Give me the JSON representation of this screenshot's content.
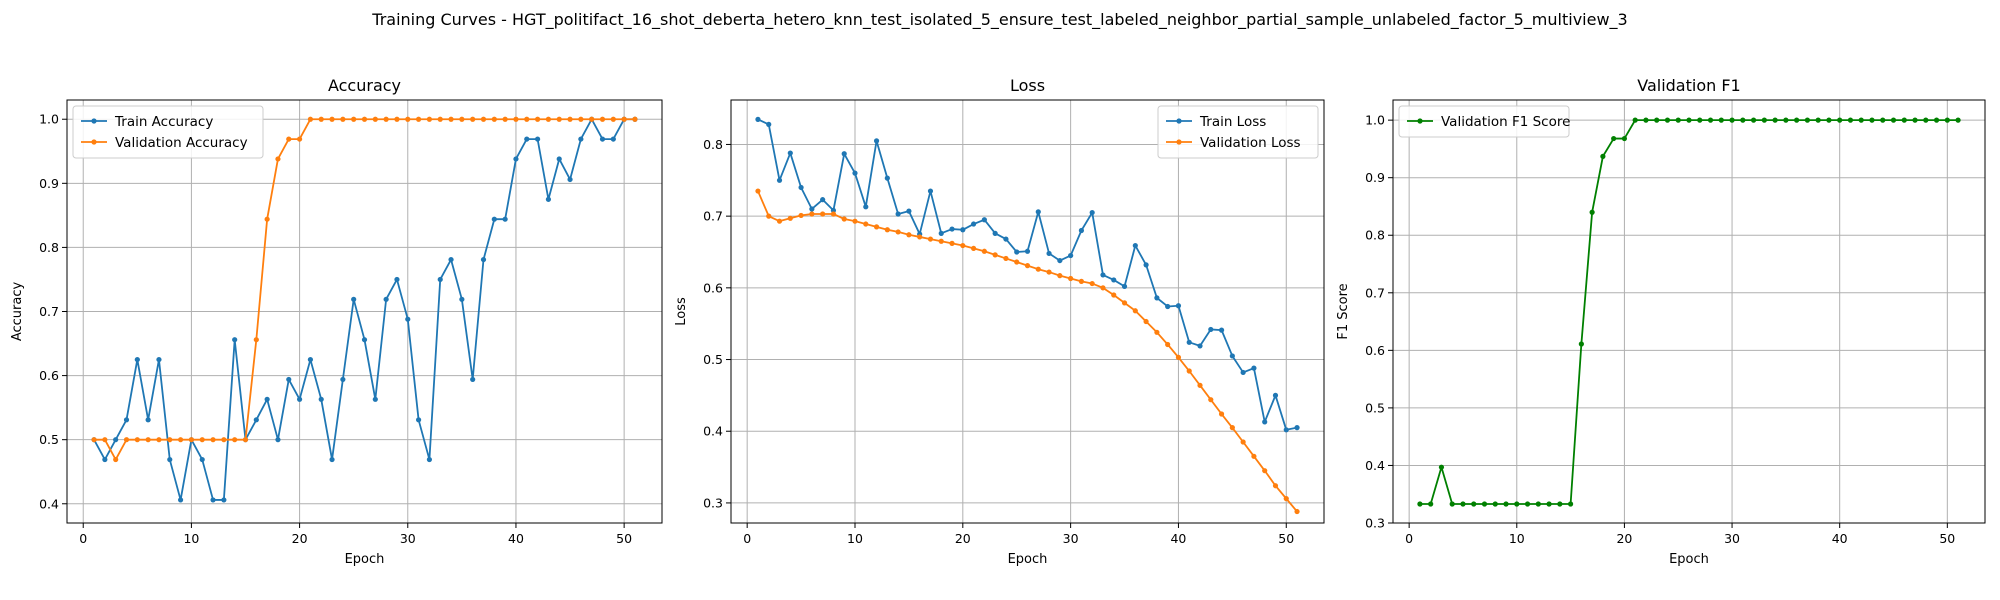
{
  "figure": {
    "suptitle": "Training Curves - HGT_politifact_16_shot_deberta_hetero_knn_test_isolated_5_ensure_test_labeled_neighbor_partial_sample_unlabeled_factor_5_multiview_3"
  },
  "colors": {
    "blue": "#1f77b4",
    "orange": "#ff7f0e",
    "green": "#008000",
    "grid": "#b0b0b0"
  },
  "chart_data": [
    {
      "type": "line",
      "title": "Accuracy",
      "xlabel": "Epoch",
      "ylabel": "Accuracy",
      "xlim": [
        -1.5,
        53.5
      ],
      "ylim": [
        0.37,
        1.03
      ],
      "xticks": [
        0,
        10,
        20,
        30,
        40,
        50
      ],
      "yticks": [
        0.4,
        0.5,
        0.6,
        0.7,
        0.8,
        0.9,
        1.0
      ],
      "ytick_labels": [
        "0.4",
        "0.5",
        "0.6",
        "0.7",
        "0.8",
        "0.9",
        "1.0"
      ],
      "grid": true,
      "legend": "upper-left",
      "x": [
        1,
        2,
        3,
        4,
        5,
        6,
        7,
        8,
        9,
        10,
        11,
        12,
        13,
        14,
        15,
        16,
        17,
        18,
        19,
        20,
        21,
        22,
        23,
        24,
        25,
        26,
        27,
        28,
        29,
        30,
        31,
        32,
        33,
        34,
        35,
        36,
        37,
        38,
        39,
        40,
        41,
        42,
        43,
        44,
        45,
        46,
        47,
        48,
        49,
        50,
        51
      ],
      "series": [
        {
          "name": "Train Accuracy",
          "color": "#1f77b4",
          "values": [
            0.5,
            0.469,
            0.5,
            0.531,
            0.625,
            0.531,
            0.625,
            0.469,
            0.406,
            0.5,
            0.469,
            0.406,
            0.406,
            0.656,
            0.5,
            0.531,
            0.563,
            0.5,
            0.594,
            0.563,
            0.625,
            0.563,
            0.469,
            0.594,
            0.719,
            0.656,
            0.563,
            0.719,
            0.75,
            0.688,
            0.531,
            0.469,
            0.75,
            0.781,
            0.719,
            0.594,
            0.781,
            0.844,
            0.844,
            0.938,
            0.969,
            0.969,
            0.875,
            0.938,
            0.906,
            0.969,
            1.0,
            0.969,
            0.969,
            1.0,
            1.0
          ]
        },
        {
          "name": "Validation Accuracy",
          "color": "#ff7f0e",
          "values": [
            0.5,
            0.5,
            0.469,
            0.5,
            0.5,
            0.5,
            0.5,
            0.5,
            0.5,
            0.5,
            0.5,
            0.5,
            0.5,
            0.5,
            0.5,
            0.656,
            0.844,
            0.938,
            0.969,
            0.969,
            1.0,
            1.0,
            1.0,
            1.0,
            1.0,
            1.0,
            1.0,
            1.0,
            1.0,
            1.0,
            1.0,
            1.0,
            1.0,
            1.0,
            1.0,
            1.0,
            1.0,
            1.0,
            1.0,
            1.0,
            1.0,
            1.0,
            1.0,
            1.0,
            1.0,
            1.0,
            1.0,
            1.0,
            1.0,
            1.0,
            1.0
          ]
        }
      ]
    },
    {
      "type": "line",
      "title": "Loss",
      "xlabel": "Epoch",
      "ylabel": "Loss",
      "xlim": [
        -1.5,
        53.5
      ],
      "ylim": [
        0.272,
        0.862
      ],
      "xticks": [
        0,
        10,
        20,
        30,
        40,
        50
      ],
      "yticks": [
        0.3,
        0.4,
        0.5,
        0.6,
        0.7,
        0.8
      ],
      "ytick_labels": [
        "0.3",
        "0.4",
        "0.5",
        "0.6",
        "0.7",
        "0.8"
      ],
      "grid": true,
      "legend": "upper-right",
      "x": [
        1,
        2,
        3,
        4,
        5,
        6,
        7,
        8,
        9,
        10,
        11,
        12,
        13,
        14,
        15,
        16,
        17,
        18,
        19,
        20,
        21,
        22,
        23,
        24,
        25,
        26,
        27,
        28,
        29,
        30,
        31,
        32,
        33,
        34,
        35,
        36,
        37,
        38,
        39,
        40,
        41,
        42,
        43,
        44,
        45,
        46,
        47,
        48,
        49,
        50,
        51
      ],
      "series": [
        {
          "name": "Train Loss",
          "color": "#1f77b4",
          "values": [
            0.835,
            0.828,
            0.75,
            0.788,
            0.74,
            0.71,
            0.723,
            0.708,
            0.787,
            0.76,
            0.713,
            0.805,
            0.753,
            0.703,
            0.707,
            0.675,
            0.735,
            0.676,
            0.682,
            0.681,
            0.689,
            0.695,
            0.676,
            0.668,
            0.65,
            0.651,
            0.706,
            0.648,
            0.638,
            0.645,
            0.68,
            0.705,
            0.618,
            0.611,
            0.602,
            0.659,
            0.632,
            0.586,
            0.574,
            0.575,
            0.524,
            0.519,
            0.542,
            0.541,
            0.505,
            0.482,
            0.488,
            0.413,
            0.45,
            0.402,
            0.405
          ]
        },
        {
          "name": "Validation Loss",
          "color": "#ff7f0e",
          "values": [
            0.735,
            0.7,
            0.693,
            0.697,
            0.701,
            0.703,
            0.703,
            0.703,
            0.696,
            0.693,
            0.689,
            0.685,
            0.681,
            0.678,
            0.674,
            0.671,
            0.668,
            0.665,
            0.662,
            0.659,
            0.655,
            0.651,
            0.646,
            0.641,
            0.636,
            0.631,
            0.626,
            0.622,
            0.617,
            0.613,
            0.609,
            0.606,
            0.6,
            0.59,
            0.579,
            0.568,
            0.553,
            0.538,
            0.521,
            0.503,
            0.484,
            0.464,
            0.444,
            0.424,
            0.405,
            0.385,
            0.365,
            0.345,
            0.324,
            0.306,
            0.288
          ]
        }
      ]
    },
    {
      "type": "line",
      "title": "Validation F1",
      "xlabel": "Epoch",
      "ylabel": "F1 Score",
      "xlim": [
        -1.5,
        53.5
      ],
      "ylim": [
        0.3,
        1.035
      ],
      "xticks": [
        0,
        10,
        20,
        30,
        40,
        50
      ],
      "yticks": [
        0.3,
        0.4,
        0.5,
        0.6,
        0.7,
        0.8,
        0.9,
        1.0
      ],
      "ytick_labels": [
        "0.3",
        "0.4",
        "0.5",
        "0.6",
        "0.7",
        "0.8",
        "0.9",
        "1.0"
      ],
      "grid": true,
      "legend": "upper-left",
      "x": [
        1,
        2,
        3,
        4,
        5,
        6,
        7,
        8,
        9,
        10,
        11,
        12,
        13,
        14,
        15,
        16,
        17,
        18,
        19,
        20,
        21,
        22,
        23,
        24,
        25,
        26,
        27,
        28,
        29,
        30,
        31,
        32,
        33,
        34,
        35,
        36,
        37,
        38,
        39,
        40,
        41,
        42,
        43,
        44,
        45,
        46,
        47,
        48,
        49,
        50,
        51
      ],
      "series": [
        {
          "name": "Validation F1 Score",
          "color": "#008000",
          "values": [
            0.333,
            0.333,
            0.397,
            0.333,
            0.333,
            0.333,
            0.333,
            0.333,
            0.333,
            0.333,
            0.333,
            0.333,
            0.333,
            0.333,
            0.333,
            0.611,
            0.84,
            0.937,
            0.968,
            0.968,
            1.0,
            1.0,
            1.0,
            1.0,
            1.0,
            1.0,
            1.0,
            1.0,
            1.0,
            1.0,
            1.0,
            1.0,
            1.0,
            1.0,
            1.0,
            1.0,
            1.0,
            1.0,
            1.0,
            1.0,
            1.0,
            1.0,
            1.0,
            1.0,
            1.0,
            1.0,
            1.0,
            1.0,
            1.0,
            1.0,
            1.0
          ]
        }
      ]
    }
  ]
}
